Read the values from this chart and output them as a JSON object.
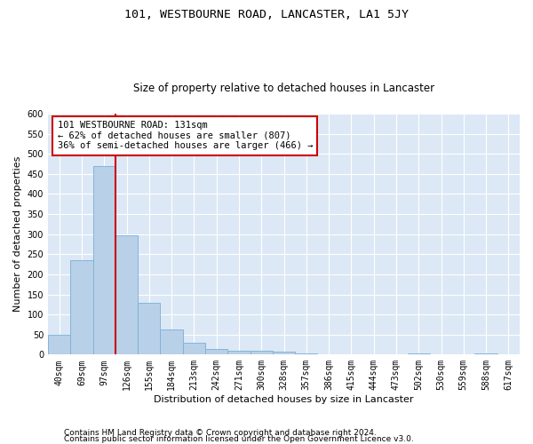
{
  "title": "101, WESTBOURNE ROAD, LANCASTER, LA1 5JY",
  "subtitle": "Size of property relative to detached houses in Lancaster",
  "xlabel": "Distribution of detached houses by size in Lancaster",
  "ylabel": "Number of detached properties",
  "categories": [
    "40sqm",
    "69sqm",
    "97sqm",
    "126sqm",
    "155sqm",
    "184sqm",
    "213sqm",
    "242sqm",
    "271sqm",
    "300sqm",
    "328sqm",
    "357sqm",
    "386sqm",
    "415sqm",
    "444sqm",
    "473sqm",
    "502sqm",
    "530sqm",
    "559sqm",
    "588sqm",
    "617sqm"
  ],
  "values": [
    50,
    235,
    470,
    298,
    128,
    63,
    30,
    15,
    9,
    10,
    8,
    3,
    0,
    0,
    0,
    0,
    4,
    0,
    0,
    4,
    0
  ],
  "bar_color": "#b8d0e8",
  "bar_edge_color": "#7aafd4",
  "vline_color": "#cc0000",
  "annotation_text": "101 WESTBOURNE ROAD: 131sqm\n← 62% of detached houses are smaller (807)\n36% of semi-detached houses are larger (466) →",
  "annotation_box_color": "#ffffff",
  "annotation_box_edge": "#cc0000",
  "ylim": [
    0,
    600
  ],
  "yticks": [
    0,
    50,
    100,
    150,
    200,
    250,
    300,
    350,
    400,
    450,
    500,
    550,
    600
  ],
  "plot_bg_color": "#dce8f5",
  "footer_line1": "Contains HM Land Registry data © Crown copyright and database right 2024.",
  "footer_line2": "Contains public sector information licensed under the Open Government Licence v3.0.",
  "title_fontsize": 9.5,
  "subtitle_fontsize": 8.5,
  "xlabel_fontsize": 8,
  "ylabel_fontsize": 8,
  "tick_fontsize": 7,
  "annotation_fontsize": 7.5,
  "footer_fontsize": 6.5
}
